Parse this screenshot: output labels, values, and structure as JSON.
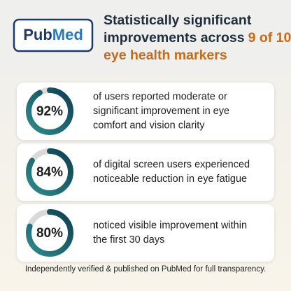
{
  "header": {
    "logo": {
      "part1": "Pub",
      "part2": "Med"
    },
    "title": {
      "line1": "Statistically significant",
      "line2": "improvements across",
      "highlight": "9 of 10",
      "line3": "eye health markers"
    }
  },
  "stats": [
    {
      "percent": {
        "value": 92,
        "label": "92%"
      },
      "lines": [
        "of users reported moderate or",
        "significant improvement in eye",
        "comfort and vision clarity"
      ]
    },
    {
      "percent": {
        "value": 84,
        "label": "84%"
      },
      "lines": [
        "of digital screen users experienced",
        "noticeable reduction in eye fatigue"
      ]
    },
    {
      "percent": {
        "value": 80,
        "label": "80%"
      },
      "lines": [
        "noticed visible improvement within",
        "the first 30 days"
      ]
    }
  ],
  "footer": "Independently verified & published on PubMed for full transparency."
}
